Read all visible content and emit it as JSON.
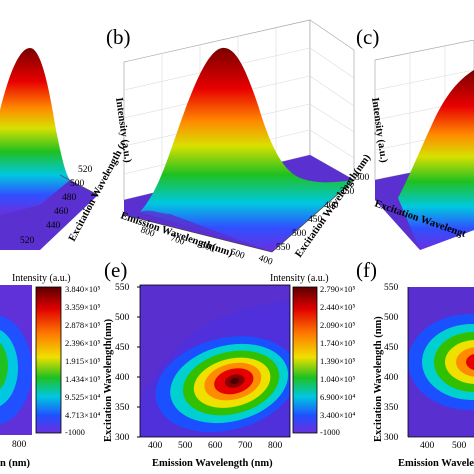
{
  "panels": {
    "b_label": "(b)",
    "c_label": "(c)",
    "e_label": "(e)",
    "f_label": "(f)"
  },
  "surface_axes": {
    "z_label": "Intensity (a.u.)",
    "x_label": "Emission Wavelength(nm)",
    "y_label": "Excitation Wavelength (nm)",
    "y_label_short": "Excitation Wavelength(nm)",
    "x_label_partial": "Excitation Wavelengt",
    "a_y_ticks": [
      "400",
      "420",
      "440",
      "460",
      "480",
      "500",
      "520"
    ],
    "b_x_ticks": [
      "800",
      "700",
      "600",
      "500",
      "400"
    ],
    "b_y_ticks": [
      "300",
      "350",
      "400",
      "450",
      "500",
      "550"
    ]
  },
  "contour_axes": {
    "x_label": "Emission Wavelength (nm)",
    "y_label": "Excitation Wavelength(nm)",
    "y_label_f": "Excitation Wavelength (nm)",
    "e_x_ticks": [
      "400",
      "500",
      "600",
      "700",
      "800"
    ],
    "e_y_ticks": [
      "300",
      "350",
      "400",
      "450",
      "500",
      "550"
    ],
    "f_x_ticks": [
      "400",
      "500"
    ],
    "f_y_ticks": [
      "300",
      "350",
      "400",
      "450",
      "500",
      "550"
    ],
    "d_x_tick": "800",
    "d_x_label_partial": "n (nm)",
    "f_x_label_partial": "Emission Wavelen"
  },
  "colorbars": {
    "d": {
      "title": "Intensity (a.u.)",
      "ticks": [
        "3.840×10⁵",
        "3.359×10⁵",
        "2.878×10⁵",
        "2.396×10⁵",
        "1.915×10⁵",
        "1.434×10⁵",
        "9.525×10⁴",
        "4.713×10⁴",
        "-1000"
      ]
    },
    "e": {
      "title": "Intensity (a.u.)",
      "ticks": [
        "2.790×10⁵",
        "2.440×10⁵",
        "2.090×10⁵",
        "1.740×10⁵",
        "1.390×10⁵",
        "1.040×10⁵",
        "6.900×10⁴",
        "3.400×10⁴",
        "-1000"
      ]
    }
  },
  "chart_data": [
    {
      "type": "heatmap",
      "panel": "b",
      "representation": "3D surface",
      "xlabel": "Emission Wavelength(nm)",
      "ylabel": "Excitation Wavelength (nm)",
      "zlabel": "Intensity (a.u.)",
      "x_ticks": [
        800,
        700,
        600,
        500,
        400
      ],
      "y_ticks": [
        300,
        350,
        400,
        450,
        500,
        550
      ]
    },
    {
      "type": "heatmap",
      "panel": "e",
      "representation": "contour map",
      "xlabel": "Emission Wavelength (nm)",
      "ylabel": "Excitation Wavelength(nm)",
      "xlim": [
        300,
        800
      ],
      "ylim": [
        300,
        550
      ],
      "peak": {
        "x": 620,
        "y": 415
      },
      "colorbar_title": "Intensity (a.u.)",
      "colorbar_range": [
        -1000,
        279000
      ]
    },
    {
      "type": "heatmap",
      "panel": "d",
      "representation": "contour map (partially visible)",
      "colorbar_title": "Intensity (a.u.)",
      "colorbar_range": [
        -1000,
        384000
      ]
    }
  ],
  "colors": {
    "background_plane": "#5a2fd0",
    "wall": "#ffffff",
    "peak": "#5a0000",
    "red": "#e60000",
    "orange": "#ff8c00",
    "yellow": "#f0e000",
    "green": "#30c000",
    "cyan": "#00d0d0",
    "blue": "#1a50ff",
    "indigo": "#4a30e0",
    "violet": "#7a30e0"
  }
}
